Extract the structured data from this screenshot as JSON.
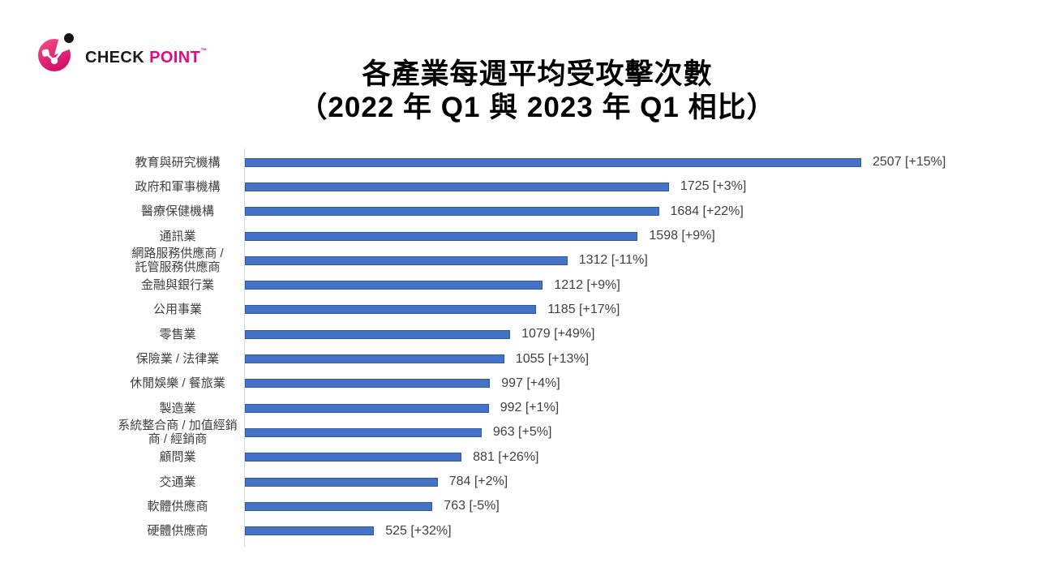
{
  "logo": {
    "check": "CHECK",
    "point": "POINT",
    "trademark": "™",
    "colors": {
      "pink": "#E3097E",
      "black": "#1B1B1B"
    }
  },
  "title": {
    "line1": "各產業每週平均受攻擊次數",
    "line2": "（2022 年 Q1 與 2023 年 Q1 相比）"
  },
  "chart_data": {
    "type": "bar",
    "orientation": "horizontal",
    "title": "各產業每週平均受攻擊次數（2022 年 Q1 與 2023 年 Q1 相比）",
    "categories": [
      "教育與研究機構",
      "政府和軍事機構",
      "醫療保健機構",
      "通訊業",
      "網路服務供應商 /\n託管服務供應商",
      "金融與銀行業",
      "公用事業",
      "零售業",
      "保險業 / 法律業",
      "休閒娛樂 / 餐旅業",
      "製造業",
      "系統整合商 / 加值經銷\n商 / 經銷商",
      "顧問業",
      "交通業",
      "軟體供應商",
      "硬體供應商"
    ],
    "values": [
      2507,
      1725,
      1684,
      1598,
      1312,
      1212,
      1185,
      1079,
      1055,
      997,
      992,
      963,
      881,
      784,
      763,
      525
    ],
    "changes": [
      "+15%",
      "+3%",
      "+22%",
      "+9%",
      "-11%",
      "+9%",
      "+17%",
      "+49%",
      "+13%",
      "+4%",
      "+1%",
      "+5%",
      "+26%",
      "+2%",
      "-5%",
      "+32%"
    ],
    "value_label_format": "{value} [{change}]",
    "xlim": [
      0,
      2507
    ],
    "grid": "off",
    "legend": "none",
    "colors": {
      "bar_fill": "#4472C4",
      "bar_border": "#2E59A8",
      "axis_line": "#D9D9D9",
      "category_label": "#404040",
      "value_label": "#404040",
      "title_text": "#000000"
    }
  }
}
